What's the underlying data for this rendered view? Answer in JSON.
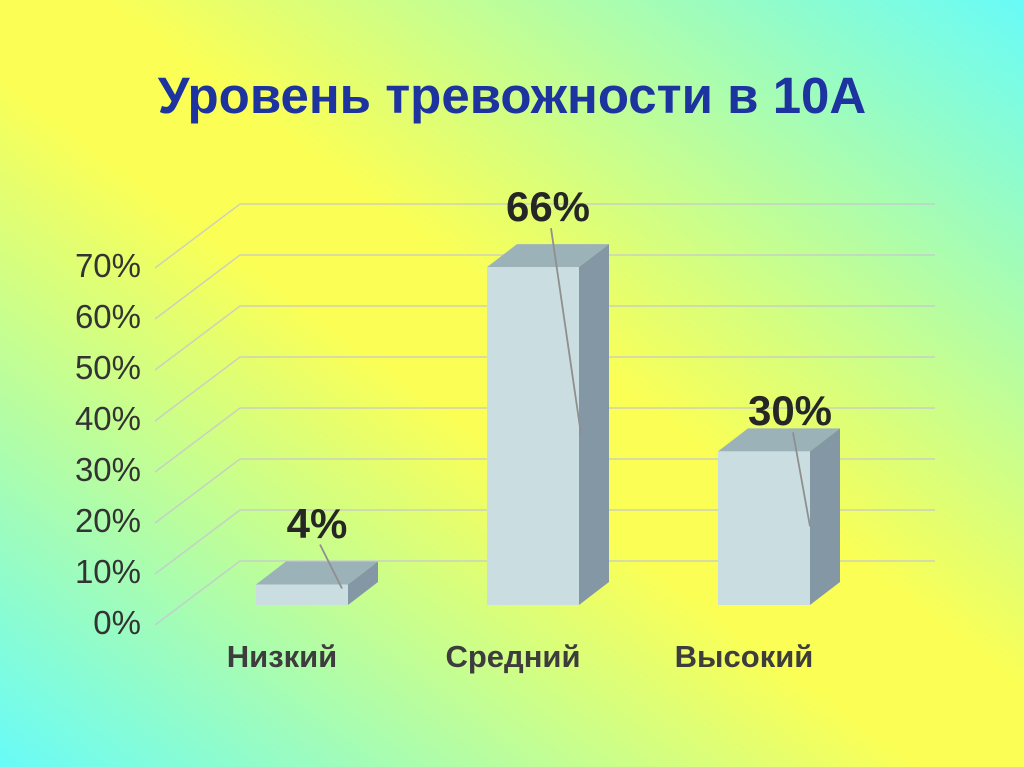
{
  "slide": {
    "title": "Уровень тревожности в 10А",
    "title_color": "#1d339f",
    "background": {
      "corner_color": "#68fbf8",
      "center_color": "#fbff55"
    }
  },
  "chart_data": {
    "type": "bar",
    "style": "3d-column",
    "title": "Уровень тревожности в 10А",
    "categories": [
      "Низкий",
      "Средний",
      "Высокий"
    ],
    "values": [
      4,
      66,
      30
    ],
    "data_labels": [
      "4%",
      "66%",
      "30%"
    ],
    "yticks": [
      "0%",
      "10%",
      "20%",
      "30%",
      "40%",
      "50%",
      "60%",
      "70%"
    ],
    "ylim": [
      0,
      70
    ],
    "xlabel": "",
    "ylabel": "",
    "grid": true,
    "legend": "none",
    "colors": {
      "bar_front": "#cadde1",
      "bar_top": "#9bb2b9",
      "bar_side": "#8398a4",
      "gridline": "#c5c6cf",
      "leader_line": "#8f8f8f",
      "tick_label": "#333333",
      "category_label": "#3d3d3d",
      "data_label": "#262626"
    }
  }
}
